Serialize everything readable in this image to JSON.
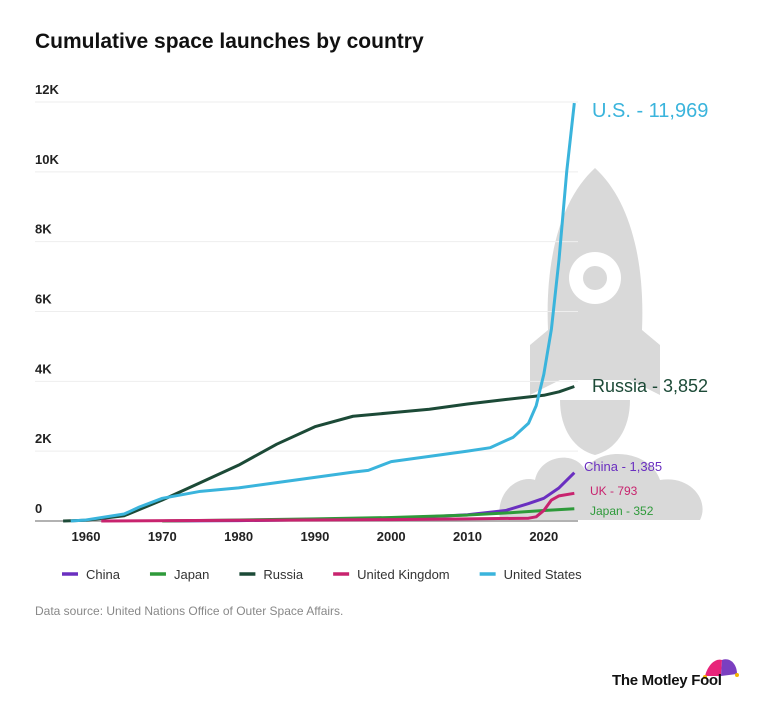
{
  "chart_data": {
    "type": "line",
    "title": "Cumulative space launches by country",
    "xlabel": "",
    "ylabel": "",
    "xlim": [
      1956,
      2024
    ],
    "ylim": [
      0,
      12000
    ],
    "xticks": [
      1960,
      1970,
      1980,
      1990,
      2000,
      2010,
      2020
    ],
    "yticks": [
      {
        "v": 0,
        "l": "0"
      },
      {
        "v": 2000,
        "l": "2K"
      },
      {
        "v": 4000,
        "l": "4K"
      },
      {
        "v": 6000,
        "l": "6K"
      },
      {
        "v": 8000,
        "l": "8K"
      },
      {
        "v": 10000,
        "l": "10K"
      },
      {
        "v": 12000,
        "l": "12K"
      }
    ],
    "grid": true,
    "legend": "bottom",
    "series": [
      {
        "name": "China",
        "color": "#6a2fc0",
        "label": "China - 1,385",
        "x": [
          1970,
          1980,
          1990,
          2000,
          2005,
          2010,
          2015,
          2018,
          2020,
          2022,
          2024
        ],
        "y": [
          1,
          10,
          40,
          80,
          120,
          180,
          300,
          500,
          650,
          950,
          1385
        ]
      },
      {
        "name": "Japan",
        "color": "#2e9a3a",
        "label": "Japan - 352",
        "x": [
          1970,
          1980,
          1990,
          2000,
          2010,
          2015,
          2020,
          2024
        ],
        "y": [
          0,
          30,
          60,
          100,
          170,
          230,
          300,
          352
        ]
      },
      {
        "name": "Russia",
        "color": "#1c4a37",
        "label": "Russia - 3,852",
        "x": [
          1957,
          1960,
          1965,
          1970,
          1975,
          1980,
          1985,
          1990,
          1995,
          2000,
          2005,
          2010,
          2015,
          2020,
          2022,
          2024
        ],
        "y": [
          0,
          20,
          150,
          600,
          1100,
          1600,
          2200,
          2700,
          3000,
          3100,
          3200,
          3350,
          3480,
          3600,
          3700,
          3852
        ]
      },
      {
        "name": "United Kingdom",
        "color": "#c8236e",
        "label": "UK - 793",
        "x": [
          1962,
          1980,
          2000,
          2010,
          2018,
          2019,
          2020,
          2021,
          2022,
          2024
        ],
        "y": [
          0,
          20,
          40,
          60,
          80,
          120,
          300,
          600,
          720,
          793
        ]
      },
      {
        "name": "United States",
        "color": "#3ab4dc",
        "label": "U.S. - 11,969",
        "x": [
          1958,
          1960,
          1965,
          1967,
          1970,
          1975,
          1980,
          1985,
          1990,
          1995,
          1997,
          2000,
          2005,
          2010,
          2013,
          2016,
          2018,
          2019,
          2020,
          2021,
          2022,
          2023,
          2024
        ],
        "y": [
          0,
          30,
          200,
          400,
          650,
          850,
          950,
          1100,
          1250,
          1400,
          1450,
          1700,
          1850,
          2000,
          2100,
          2400,
          2800,
          3300,
          4200,
          5500,
          7500,
          10000,
          11969
        ]
      }
    ]
  },
  "source": "Data source: United Nations Office of Outer Space Affairs.",
  "logo": "The Motley Fool"
}
